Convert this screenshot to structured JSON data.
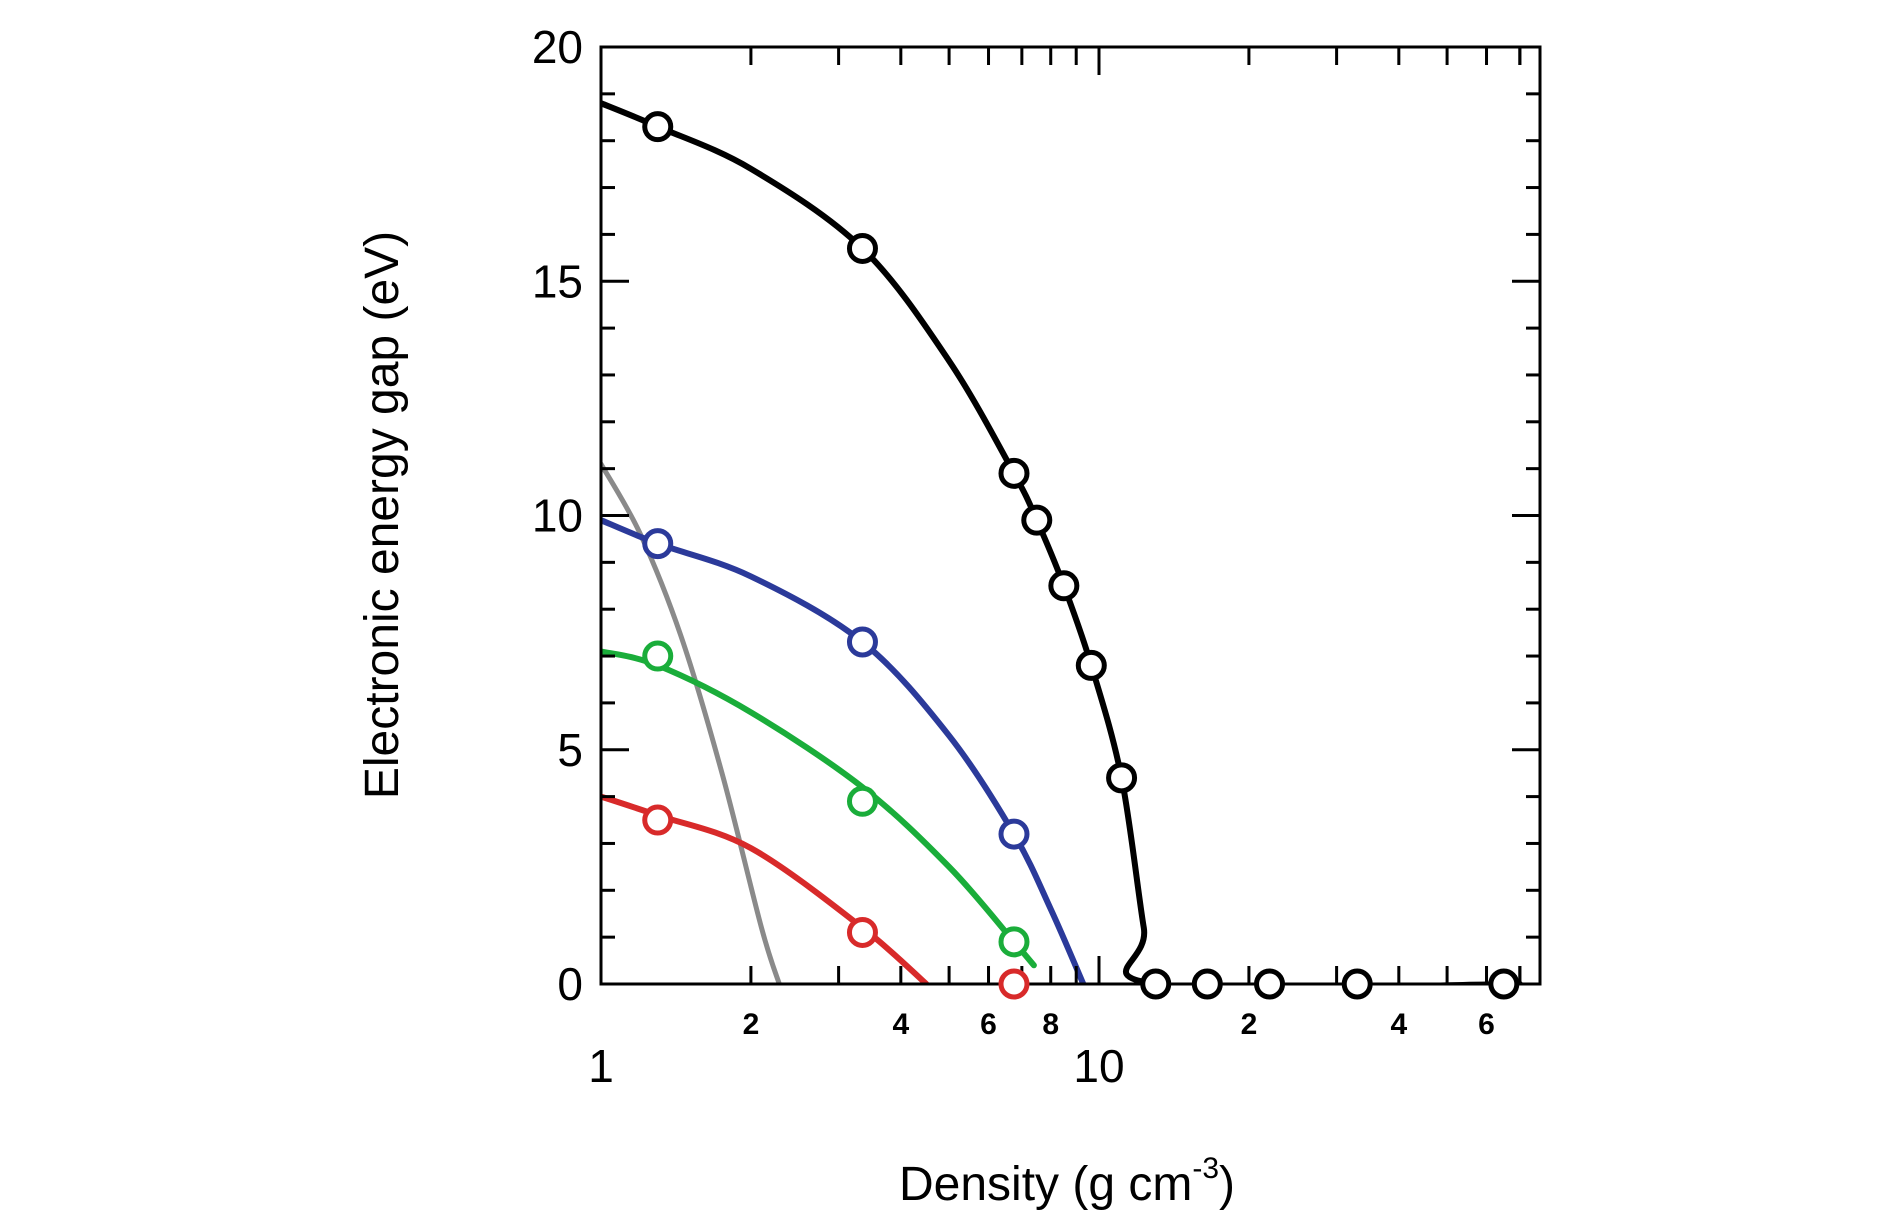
{
  "chart_data": {
    "type": "line",
    "title": "",
    "xlabel": {
      "main": "Density (g cm",
      "sup": "-3",
      "close": ")"
    },
    "ylabel": "Electronic energy gap (eV)",
    "xscale": "log",
    "xlim": [
      1,
      70
    ],
    "ylim": [
      0,
      20
    ],
    "x_major_ticks": [
      {
        "value": 1,
        "label": "1"
      },
      {
        "value": 10,
        "label": "10"
      }
    ],
    "x_minor_labels": [
      {
        "value": 2,
        "label": "2"
      },
      {
        "value": 4,
        "label": "4"
      },
      {
        "value": 6,
        "label": "6"
      },
      {
        "value": 8,
        "label": "8"
      },
      {
        "value": 20,
        "label": "2"
      },
      {
        "value": 40,
        "label": "4"
      },
      {
        "value": 60,
        "label": "6"
      }
    ],
    "y_ticks": [
      {
        "value": 0,
        "label": "0"
      },
      {
        "value": 5,
        "label": "5"
      },
      {
        "value": 10,
        "label": "10"
      },
      {
        "value": 15,
        "label": "15"
      },
      {
        "value": 20,
        "label": "20"
      }
    ],
    "series": [
      {
        "name": "black",
        "color": "#000000",
        "points": [
          [
            1.3,
            18.3
          ],
          [
            3.35,
            15.7
          ],
          [
            6.75,
            10.9
          ],
          [
            7.5,
            9.9
          ],
          [
            8.5,
            8.5
          ],
          [
            9.65,
            6.8
          ],
          [
            11.1,
            4.4
          ],
          [
            13.0,
            0
          ],
          [
            16.5,
            0
          ],
          [
            22.0,
            0
          ],
          [
            33.0,
            0
          ],
          [
            65.0,
            0
          ]
        ],
        "curve": [
          [
            1.0,
            18.8
          ],
          [
            1.3,
            18.3
          ],
          [
            2.0,
            17.4
          ],
          [
            3.35,
            15.7
          ],
          [
            5.0,
            13.3
          ],
          [
            6.75,
            10.9
          ],
          [
            7.5,
            9.9
          ],
          [
            8.5,
            8.5
          ],
          [
            9.65,
            6.8
          ],
          [
            11.1,
            4.4
          ],
          [
            12.3,
            1.2
          ],
          [
            13.0,
            0
          ],
          [
            70.0,
            0
          ]
        ]
      },
      {
        "name": "blue",
        "color": "#2b3a9a",
        "points": [
          [
            1.3,
            9.4
          ],
          [
            3.35,
            7.3
          ],
          [
            6.75,
            3.2
          ]
        ],
        "curve": [
          [
            1.0,
            9.9
          ],
          [
            1.3,
            9.4
          ],
          [
            2.0,
            8.7
          ],
          [
            3.35,
            7.3
          ],
          [
            5.0,
            5.3
          ],
          [
            6.75,
            3.2
          ],
          [
            8.0,
            1.6
          ],
          [
            9.3,
            0
          ]
        ]
      },
      {
        "name": "green",
        "color": "#1aad3a",
        "points": [
          [
            1.3,
            7.0
          ],
          [
            3.35,
            3.9
          ],
          [
            6.75,
            0.9
          ]
        ],
        "curve": [
          [
            1.0,
            7.1
          ],
          [
            1.3,
            6.8
          ],
          [
            2.0,
            5.8
          ],
          [
            3.35,
            4.2
          ],
          [
            5.0,
            2.5
          ],
          [
            6.75,
            0.9
          ],
          [
            7.4,
            0.4
          ]
        ]
      },
      {
        "name": "red",
        "color": "#d82a2a",
        "points": [
          [
            1.3,
            3.5
          ],
          [
            3.35,
            1.1
          ],
          [
            6.75,
            0
          ]
        ],
        "curve": [
          [
            1.0,
            4.0
          ],
          [
            1.3,
            3.6
          ],
          [
            2.0,
            2.9
          ],
          [
            3.35,
            1.2
          ],
          [
            4.5,
            0
          ]
        ]
      },
      {
        "name": "gray",
        "color": "#8a8a8a",
        "points": [],
        "curve": [
          [
            1.0,
            11.1
          ],
          [
            1.2,
            9.6
          ],
          [
            1.45,
            7.4
          ],
          [
            1.75,
            4.5
          ],
          [
            2.1,
            1.2
          ],
          [
            2.28,
            0
          ]
        ]
      }
    ]
  }
}
